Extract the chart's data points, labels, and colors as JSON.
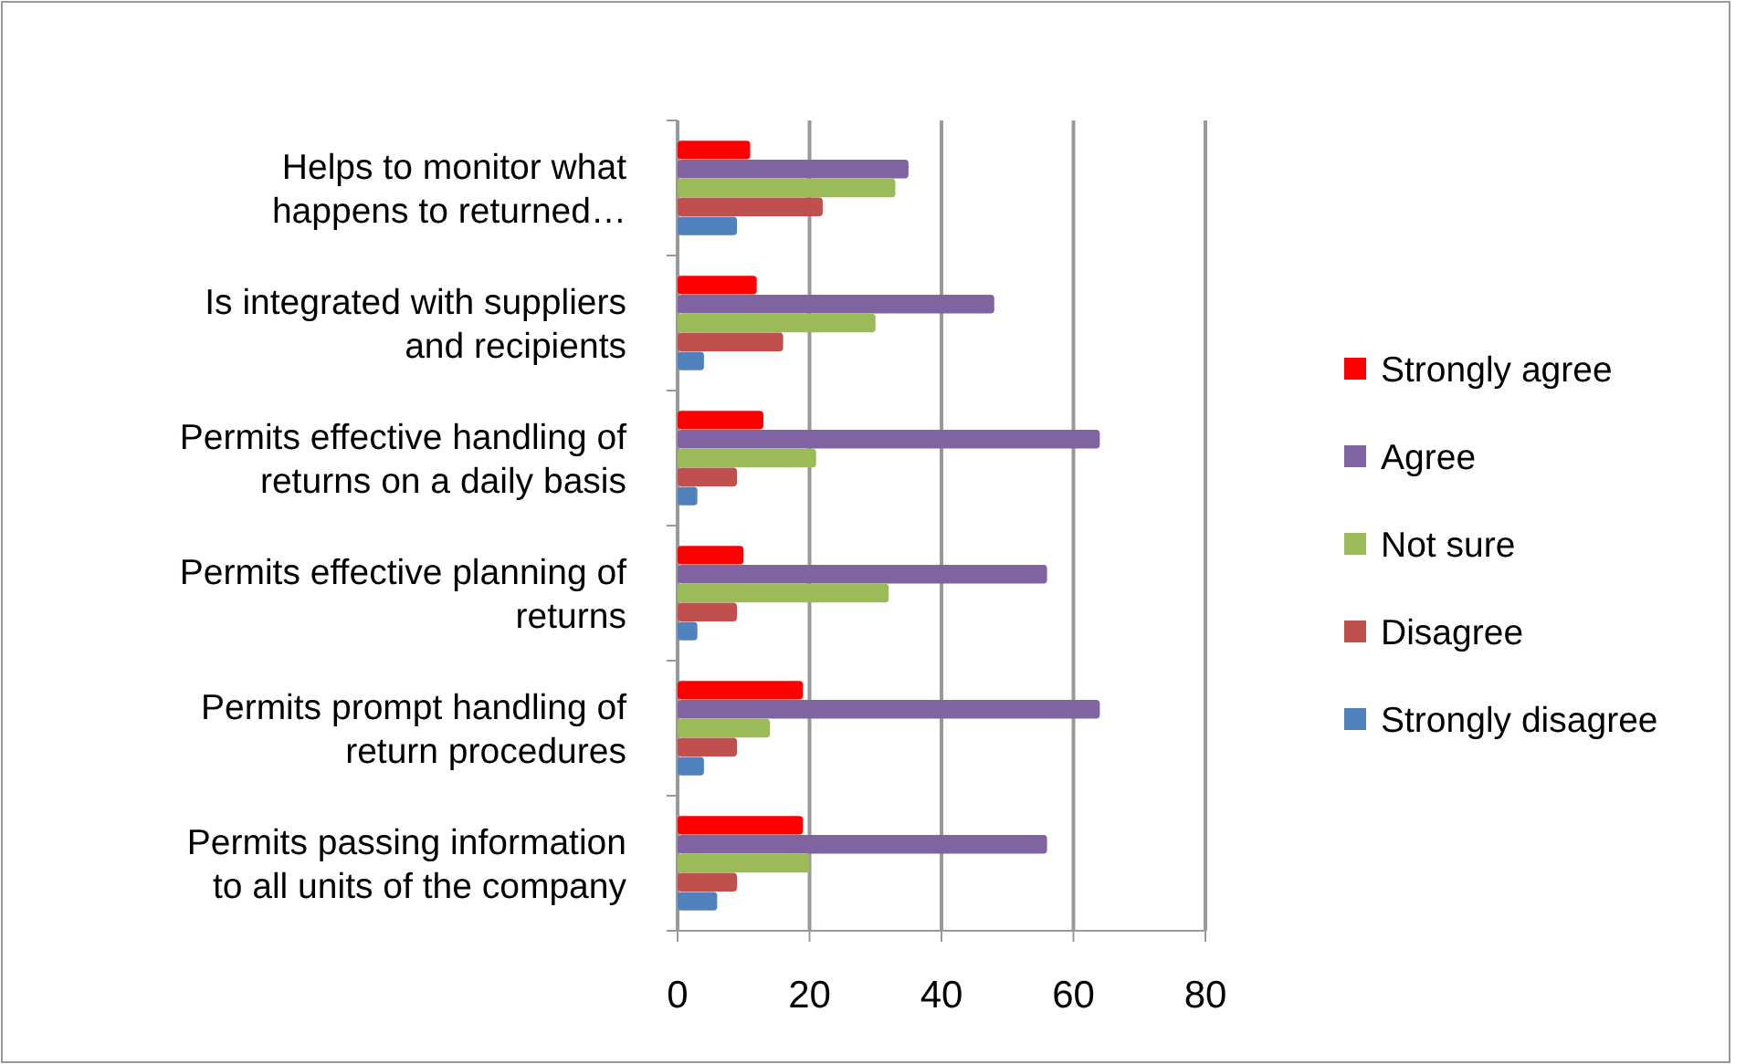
{
  "chart_data": {
    "type": "bar",
    "orientation": "horizontal",
    "categories": [
      "Helps to monitor what\nhappens to returned…",
      "Is integrated with suppliers\nand recipients",
      "Permits effective handling of\nreturns on a daily basis",
      "Permits effective planning of\nreturns",
      "Permits prompt handling of\nreturn procedures",
      "Permits passing information\nto all units of the company"
    ],
    "series": [
      {
        "name": "Strongly agree",
        "color": "#ff0000",
        "values": [
          11,
          12,
          13,
          10,
          19,
          19
        ]
      },
      {
        "name": "Agree",
        "color": "#8064a2",
        "values": [
          35,
          48,
          64,
          56,
          64,
          56
        ]
      },
      {
        "name": "Not sure",
        "color": "#9bbb59",
        "values": [
          33,
          30,
          21,
          32,
          14,
          20
        ]
      },
      {
        "name": "Disagree",
        "color": "#c0504d",
        "values": [
          22,
          16,
          9,
          9,
          9,
          9
        ]
      },
      {
        "name": "Strongly disagree",
        "color": "#4f81bd",
        "values": [
          9,
          4,
          3,
          3,
          4,
          6
        ]
      }
    ],
    "xlim": [
      0,
      80
    ],
    "xticks": [
      0,
      20,
      40,
      60,
      80
    ],
    "grid": "x",
    "legend": "right"
  }
}
